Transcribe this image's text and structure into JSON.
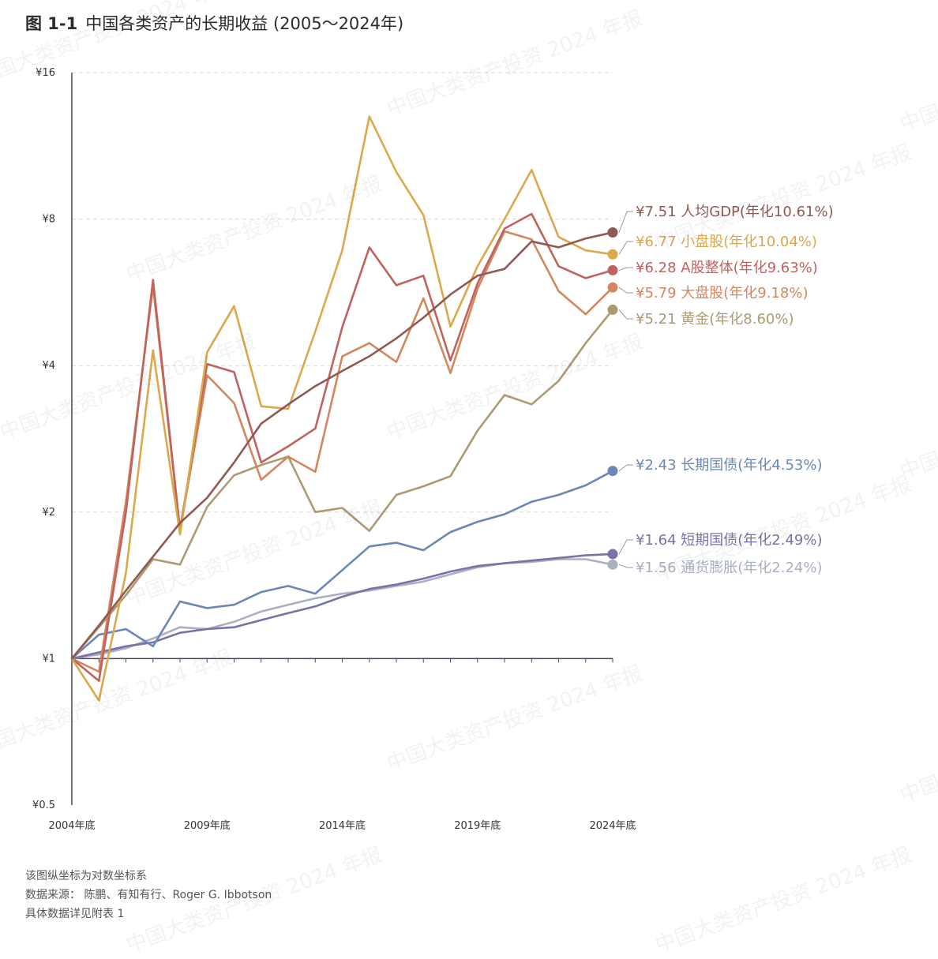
{
  "title": {
    "fig_no": "图 1-1",
    "text": "中国各类资产的长期收益 (2005～2024年)"
  },
  "watermark": "中国大类资产投资 2024 年报",
  "notes": [
    "该图纵坐标为对数坐标系",
    "数据来源： 陈鹏、有知有行、Roger G. Ibbotson",
    "具体数据详见附表 1"
  ],
  "chart_data": {
    "type": "line",
    "title": "中国各类资产的长期收益 (2005～2024年)",
    "y_scale": "log",
    "ylim": [
      0.5,
      16
    ],
    "y_ticks": [
      {
        "value": 0.5,
        "label": "¥0.5"
      },
      {
        "value": 1,
        "label": "¥1"
      },
      {
        "value": 2,
        "label": "¥2"
      },
      {
        "value": 4,
        "label": "¥4"
      },
      {
        "value": 8,
        "label": "¥8"
      },
      {
        "value": 16,
        "label": "¥16"
      }
    ],
    "x": [
      2004,
      2005,
      2006,
      2007,
      2008,
      2009,
      2010,
      2011,
      2012,
      2013,
      2014,
      2015,
      2016,
      2017,
      2018,
      2019,
      2020,
      2021,
      2022,
      2023,
      2024
    ],
    "x_ticks": [
      {
        "value": 2004,
        "label": "2004年底"
      },
      {
        "value": 2009,
        "label": "2009年底"
      },
      {
        "value": 2014,
        "label": "2014年底"
      },
      {
        "value": 2019,
        "label": "2019年底"
      },
      {
        "value": 2024,
        "label": "2024年底"
      }
    ],
    "series": [
      {
        "name": "人均GDP",
        "end_label": "¥7.51 人均GDP(年化10.61%)",
        "color": "#8f5a52",
        "values": [
          1,
          1.17,
          1.38,
          1.62,
          1.9,
          2.14,
          2.53,
          3.04,
          3.33,
          3.63,
          3.9,
          4.18,
          4.55,
          5.02,
          5.6,
          6.12,
          6.32,
          7.2,
          7.0,
          7.3,
          7.51
        ]
      },
      {
        "name": "小盘股",
        "end_label": "¥6.77 小盘股(年化10.04%)",
        "color": "#dba84b",
        "values": [
          1,
          0.82,
          1.5,
          4.3,
          1.8,
          4.26,
          5.3,
          3.3,
          3.26,
          4.7,
          6.9,
          13.0,
          10.0,
          8.15,
          4.81,
          6.4,
          8.0,
          10.1,
          7.35,
          6.9,
          6.77
        ]
      },
      {
        "name": "A股整体",
        "end_label": "¥6.28 A股整体(年化9.63%)",
        "color": "#c0625e",
        "values": [
          1,
          0.9,
          2.0,
          6.0,
          1.84,
          4.03,
          3.88,
          2.53,
          2.73,
          2.97,
          4.8,
          7.0,
          5.85,
          6.12,
          4.1,
          5.9,
          7.65,
          8.2,
          6.4,
          6.05,
          6.28
        ]
      },
      {
        "name": "大盘股",
        "end_label": "¥5.79 大盘股(年化9.18%)",
        "color": "#d2875e",
        "values": [
          1,
          0.94,
          2.1,
          5.82,
          1.83,
          3.82,
          3.35,
          2.33,
          2.6,
          2.42,
          4.18,
          4.45,
          4.07,
          5.5,
          3.86,
          5.75,
          7.55,
          7.27,
          5.69,
          5.1,
          5.79
        ]
      },
      {
        "name": "黄金",
        "end_label": "¥5.21 黄金(年化8.60%)",
        "color": "#ad9a73",
        "values": [
          1,
          1.16,
          1.35,
          1.6,
          1.56,
          2.05,
          2.38,
          2.5,
          2.6,
          2.0,
          2.04,
          1.83,
          2.17,
          2.26,
          2.37,
          2.94,
          3.48,
          3.33,
          3.72,
          4.45,
          5.21
        ]
      },
      {
        "name": "长期国债",
        "end_label": "¥2.43 长期国债(年化4.53%)",
        "color": "#6b87b7",
        "values": [
          1,
          1.12,
          1.15,
          1.06,
          1.31,
          1.27,
          1.29,
          1.37,
          1.41,
          1.36,
          1.52,
          1.7,
          1.73,
          1.67,
          1.82,
          1.91,
          1.98,
          2.1,
          2.17,
          2.27,
          2.43
        ]
      },
      {
        "name": "短期国债",
        "end_label": "¥1.64 短期国债(年化2.49%)",
        "color": "#7972a6",
        "values": [
          1,
          1.03,
          1.06,
          1.08,
          1.13,
          1.15,
          1.16,
          1.2,
          1.24,
          1.28,
          1.34,
          1.39,
          1.42,
          1.46,
          1.51,
          1.55,
          1.57,
          1.59,
          1.61,
          1.63,
          1.64
        ]
      },
      {
        "name": "通货膨胀",
        "end_label": "¥1.56 通货膨胀(年化2.24%)",
        "color": "#a8b0c4",
        "values": [
          1,
          1.02,
          1.05,
          1.1,
          1.16,
          1.15,
          1.19,
          1.25,
          1.29,
          1.33,
          1.36,
          1.38,
          1.41,
          1.44,
          1.49,
          1.54,
          1.57,
          1.58,
          1.6,
          1.6,
          1.56
        ]
      }
    ]
  }
}
